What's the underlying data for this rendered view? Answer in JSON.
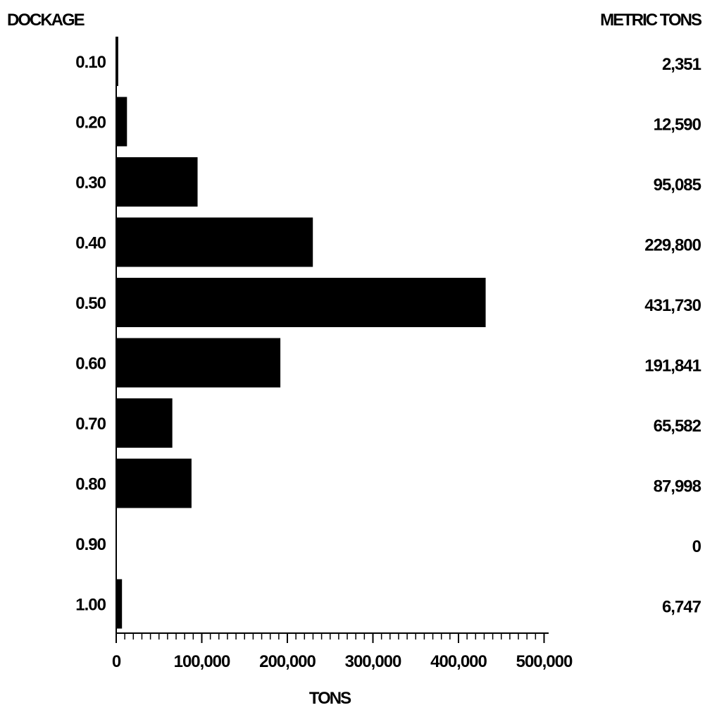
{
  "chart_data": {
    "type": "bar",
    "orientation": "horizontal",
    "ylabel": "DOCKAGE",
    "value_column_label": "METRIC TONS",
    "xlabel": "TONS",
    "categories": [
      "0.10",
      "0.20",
      "0.30",
      "0.40",
      "0.50",
      "0.60",
      "0.70",
      "0.80",
      "0.90",
      "1.00"
    ],
    "values": [
      2351,
      12590,
      95085,
      229800,
      431730,
      191841,
      65582,
      87998,
      0,
      6747
    ],
    "value_labels": [
      "2,351",
      "12,590",
      "95,085",
      "229,800",
      "431,730",
      "191,841",
      "65,582",
      "87,998",
      "0",
      "6,747"
    ],
    "xlim": [
      0,
      500000
    ],
    "x_ticks": [
      0,
      100000,
      200000,
      300000,
      400000,
      500000
    ],
    "x_tick_labels": [
      "0",
      "100,000",
      "200,000",
      "300,000",
      "400,000",
      "500,000"
    ],
    "x_minor_tick_step": 10000,
    "grid": false,
    "legend": "none",
    "bar_color": "#000000"
  }
}
